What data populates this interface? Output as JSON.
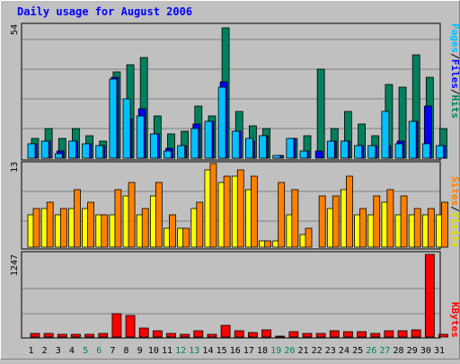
{
  "title": "Daily usage for August 2006",
  "colors": {
    "background": "#c0c0c0",
    "title": "#0000ff",
    "hits": "#00805c",
    "files": "#0000ff",
    "pages": "#00c0ff",
    "visits": "#ffff00",
    "sites": "#ff8000",
    "kbytes": "#ff0000",
    "weekend": "#00805c",
    "grid": "#808080"
  },
  "chart_data": {
    "type": "bar",
    "x_categories": [
      "1",
      "2",
      "3",
      "4",
      "5",
      "6",
      "7",
      "8",
      "9",
      "10",
      "11",
      "12",
      "13",
      "14",
      "15",
      "16",
      "17",
      "18",
      "19",
      "20",
      "21",
      "22",
      "23",
      "24",
      "25",
      "26",
      "27",
      "28",
      "29",
      "30",
      "31"
    ],
    "weekend_days": [
      "5",
      "6",
      "12",
      "13",
      "19",
      "20",
      "26",
      "27"
    ],
    "panels": [
      {
        "id": "hits_files_pages",
        "ymax_label": "54",
        "ylim": [
          0,
          54
        ],
        "series": [
          {
            "name": "Hits",
            "values": [
              8,
              12,
              8,
              12,
              9,
              7,
              35,
              38,
              41,
              17,
              10,
              11,
              21,
              17,
              53,
              19,
              13,
              12,
              1,
              8,
              9,
              36,
              12,
              19,
              14,
              9,
              30,
              29,
              42,
              33,
              12
            ]
          },
          {
            "name": "Files",
            "values": [
              6,
              7,
              3,
              7,
              6,
              5,
              33,
              16,
              20,
              10,
              4,
              5,
              14,
              15,
              31,
              11,
              7,
              9,
              1,
              8,
              3,
              3,
              7,
              7,
              5,
              5,
              5,
              7,
              15,
              21,
              5
            ]
          },
          {
            "name": "Pages",
            "values": [
              6,
              7,
              2,
              7,
              6,
              5,
              32,
              24,
              17,
              10,
              3,
              5,
              12,
              15,
              29,
              11,
              8,
              9,
              1,
              8,
              3,
              0,
              7,
              7,
              5,
              5,
              19,
              6,
              15,
              6,
              5
            ]
          }
        ]
      },
      {
        "id": "visits_sites",
        "ymax_label": "13",
        "ylim": [
          0,
          13
        ],
        "series": [
          {
            "name": "Visits",
            "values": [
              5,
              6,
              5,
              6,
              6,
              5,
              5,
              8,
              5,
              8,
              3,
              3,
              6,
              12,
              10,
              11,
              9,
              1,
              1,
              5,
              2,
              0,
              6,
              9,
              5,
              5,
              7,
              5,
              5,
              5,
              5
            ]
          },
          {
            "name": "Sites",
            "values": [
              6,
              7,
              6,
              9,
              7,
              5,
              9,
              10,
              6,
              10,
              5,
              3,
              7,
              13,
              11,
              12,
              11,
              1,
              10,
              9,
              3,
              8,
              8,
              11,
              6,
              8,
              9,
              8,
              6,
              6,
              7
            ]
          }
        ]
      },
      {
        "id": "kbytes",
        "ymax_label": "1247",
        "ylim": [
          0,
          1247
        ],
        "series": [
          {
            "name": "KBytes",
            "values": [
              60,
              60,
              40,
              40,
              40,
              60,
              350,
              330,
              130,
              90,
              50,
              40,
              90,
              40,
              170,
              90,
              70,
              110,
              10,
              80,
              50,
              50,
              90,
              80,
              80,
              60,
              90,
              90,
              110,
              1247,
              40
            ]
          }
        ]
      }
    ],
    "axis_titles": {
      "top": [
        "Pages",
        "/",
        "Files",
        "/",
        "Hits"
      ],
      "middle": [
        "Sites",
        "/",
        "Visits"
      ],
      "bottom": [
        "KBytes"
      ]
    }
  }
}
